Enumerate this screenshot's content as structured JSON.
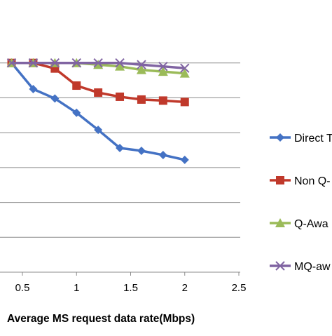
{
  "chart_data": {
    "type": "line",
    "title": "",
    "xlabel": "Average MS request data rate(Mbps)",
    "ylabel": "",
    "xlim": [
      0.3,
      2.5
    ],
    "ylim": [
      0,
      7
    ],
    "x_ticks": [
      "0.5",
      "1",
      "1.5",
      "2",
      "2.5"
    ],
    "grid": true,
    "legend_position": "right",
    "x": [
      0.4,
      0.6,
      0.8,
      1.0,
      1.2,
      1.4,
      1.6,
      1.8,
      2.0
    ],
    "series": [
      {
        "name": "Direct T",
        "color": "#4472c4",
        "marker": "diamond",
        "values": [
          6.0,
          5.25,
          4.98,
          4.57,
          4.08,
          3.56,
          3.48,
          3.36,
          3.22
        ]
      },
      {
        "name": "Non Q-",
        "color": "#c0392b",
        "marker": "square",
        "values": [
          6.0,
          6.0,
          5.84,
          5.35,
          5.15,
          5.03,
          4.95,
          4.92,
          4.88
        ]
      },
      {
        "name": "Q-Awa",
        "color": "#9bbb59",
        "marker": "triangle",
        "values": [
          6.0,
          6.0,
          6.0,
          6.0,
          5.95,
          5.9,
          5.8,
          5.75,
          5.7
        ]
      },
      {
        "name": "MQ-aw",
        "color": "#8064a2",
        "marker": "x",
        "values": [
          6.0,
          6.0,
          6.0,
          6.0,
          6.0,
          6.0,
          5.95,
          5.9,
          5.85
        ]
      }
    ]
  }
}
